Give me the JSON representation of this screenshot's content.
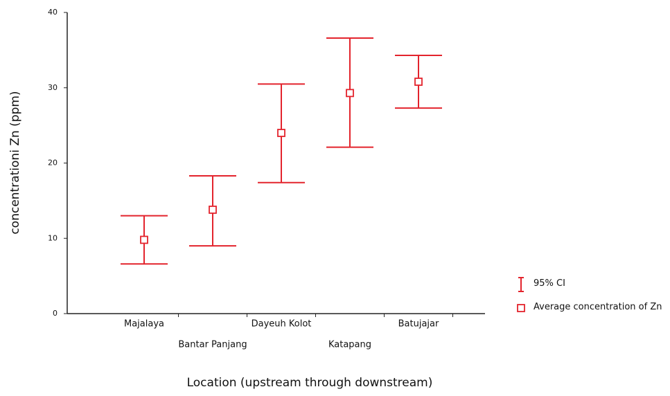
{
  "chart_data": {
    "type": "errorbar",
    "y_label": "concentrationi Zn (ppm)",
    "x_label": "Location (upstream through downstream)",
    "categories": [
      "Majalaya",
      "Bantar Panjang",
      "Dayeuh Kolot",
      "Katapang",
      "Batujajar"
    ],
    "series": [
      {
        "name": "Average concentration of Zn",
        "color": "#e3232c",
        "values": [
          9.8,
          13.8,
          24,
          29.3,
          30.8
        ]
      }
    ],
    "ci": {
      "name": "95% CI",
      "color": "#e3232c",
      "lower": [
        6.6,
        9.0,
        17.4,
        22.1,
        27.3
      ],
      "upper": [
        13.0,
        18.3,
        30.5,
        36.6,
        34.3
      ]
    },
    "ylim": [
      0,
      40
    ],
    "yticks": [
      0,
      10,
      20,
      30,
      40
    ]
  }
}
